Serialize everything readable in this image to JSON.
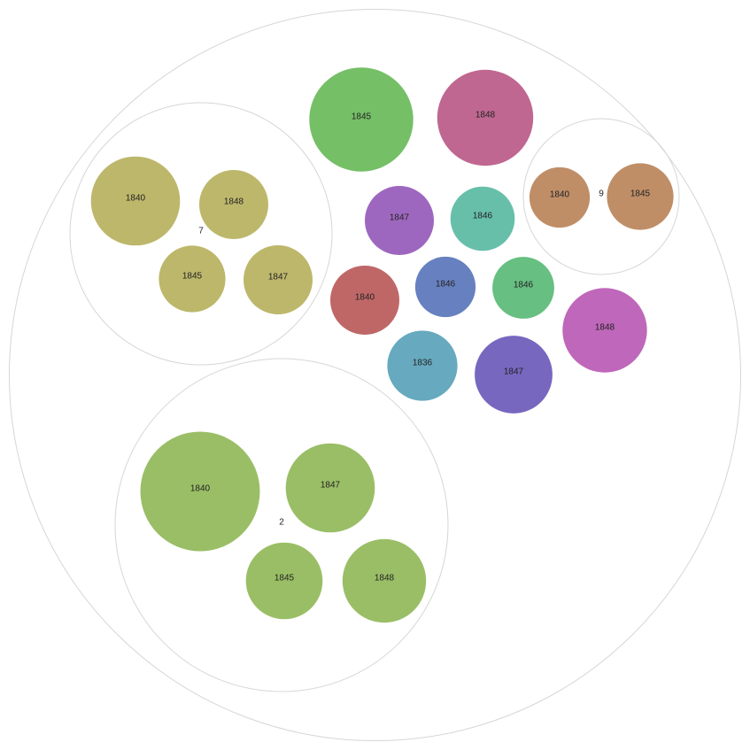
{
  "chart_data": {
    "type": "packed-bubble",
    "groups": [
      {
        "label": "7",
        "color": "#BDB76B",
        "items": [
          {
            "label": "1840",
            "value": 5.0
          },
          {
            "label": "1848",
            "value": 3.0
          },
          {
            "label": "1845",
            "value": 2.8
          },
          {
            "label": "1847",
            "value": 3.0
          }
        ]
      },
      {
        "label": "2",
        "color": "#9ABE66",
        "items": [
          {
            "label": "1840",
            "value": 9.0
          },
          {
            "label": "1847",
            "value": 5.0
          },
          {
            "label": "1845",
            "value": 3.7
          },
          {
            "label": "1848",
            "value": 4.4
          }
        ]
      },
      {
        "label": "9",
        "color": "#BF8E67",
        "items": [
          {
            "label": "1840",
            "value": 2.3
          },
          {
            "label": "1845",
            "value": 2.8
          }
        ]
      },
      {
        "label": "",
        "color": "",
        "items": [
          {
            "label": "1845",
            "value": 6.8,
            "color": "#75BF67"
          },
          {
            "label": "1848",
            "value": 5.8,
            "color": "#BF6790"
          },
          {
            "label": "1847",
            "value": 3.0,
            "color": "#9E67BF"
          },
          {
            "label": "1846",
            "value": 2.6,
            "color": "#67BFAA"
          },
          {
            "label": "1840",
            "value": 3.0,
            "color": "#BF6767"
          },
          {
            "label": "1846",
            "value": 2.3,
            "color": "#6780BF"
          },
          {
            "label": "1846",
            "value": 2.4,
            "color": "#67BF81"
          },
          {
            "label": "1848",
            "value": 4.5,
            "color": "#BF67BA"
          },
          {
            "label": "1836",
            "value": 3.1,
            "color": "#67A9BF"
          },
          {
            "label": "1847",
            "value": 3.8,
            "color": "#7867BF"
          }
        ]
      }
    ]
  }
}
